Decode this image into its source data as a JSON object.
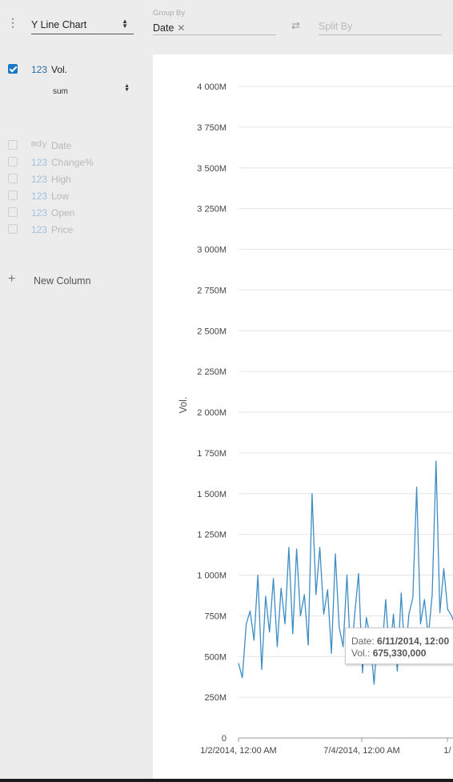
{
  "toolbar": {
    "chart_type": "Y Line Chart",
    "group_by_label": "Group By",
    "group_by_value": "Date",
    "split_by_placeholder": "Split By"
  },
  "sidebar": {
    "active_column": {
      "type": "123",
      "name": "Vol.",
      "aggregate": "sum"
    },
    "inactive_columns": [
      {
        "type": "mdy",
        "name": "Date"
      },
      {
        "type": "123",
        "name": "Change%"
      },
      {
        "type": "123",
        "name": "High"
      },
      {
        "type": "123",
        "name": "Low"
      },
      {
        "type": "123",
        "name": "Open"
      },
      {
        "type": "123",
        "name": "Price"
      }
    ],
    "new_column_label": "New Column"
  },
  "tooltip": {
    "date_label": "Date:",
    "date_value": "6/11/2014, 12:00",
    "vol_label": "Vol.:",
    "vol_value": "675,330,000"
  },
  "colors": {
    "accent": "#1a78c2",
    "line": "#3d8dc4"
  },
  "chart_data": {
    "type": "line",
    "ylabel": "Vol.",
    "ylim": [
      0,
      4000
    ],
    "y_unit": "M",
    "y_ticks": [
      "0",
      "250M",
      "500M",
      "750M",
      "1 000M",
      "1 250M",
      "1 500M",
      "1 750M",
      "2 000M",
      "2 250M",
      "2 500M",
      "2 750M",
      "3 000M",
      "3 250M",
      "3 500M",
      "3 750M",
      "4 000M"
    ],
    "x_ticks": [
      "1/2/2014, 12:00 AM",
      "7/4/2014, 12:00 AM",
      "1/"
    ],
    "series": [
      {
        "values": [
          460,
          370,
          700,
          780,
          600,
          1000,
          420,
          870,
          650,
          980,
          560,
          920,
          700,
          1170,
          640,
          1160,
          750,
          880,
          570,
          1500,
          880,
          1170,
          760,
          910,
          520,
          1130,
          680,
          560,
          1000,
          460,
          760,
          1010,
          400,
          740,
          620,
          330,
          670,
          520,
          850,
          500,
          760,
          410,
          890,
          480,
          760,
          860,
          1540,
          700,
          850,
          620,
          880,
          1700,
          770,
          1040,
          790,
          750,
          690
        ]
      }
    ]
  }
}
